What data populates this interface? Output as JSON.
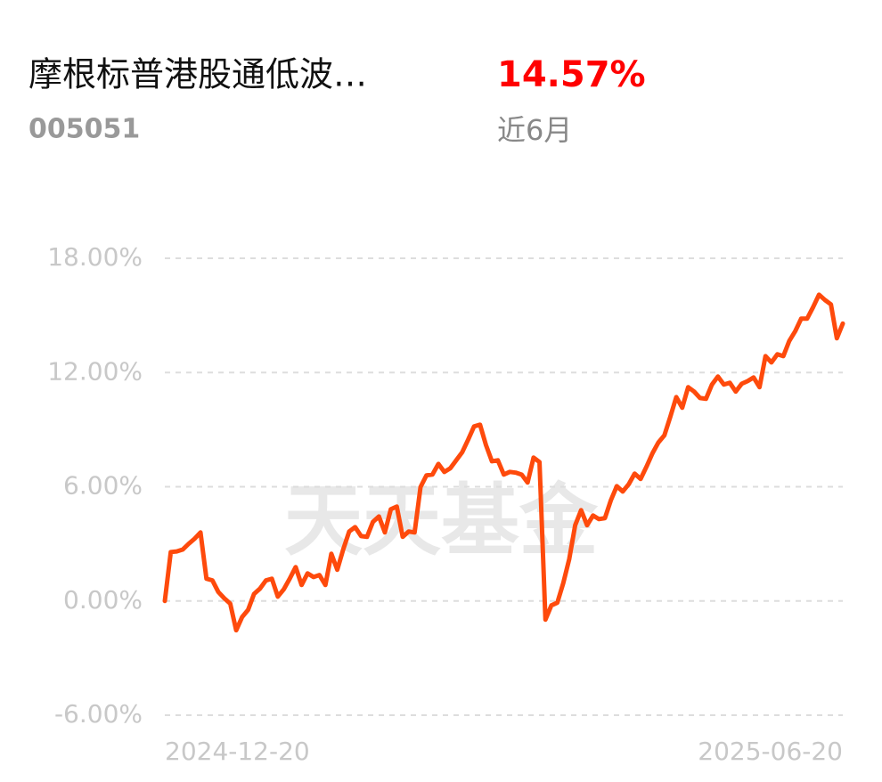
{
  "header": {
    "title": "摩根标普港股通低波…",
    "return": "14.57%",
    "code": "005051",
    "period": "近6月"
  },
  "chart_data": {
    "type": "line",
    "watermark": "天天基金",
    "categories": [
      "2024-12-20",
      null,
      null,
      null,
      null,
      null,
      null,
      null,
      null,
      null,
      null,
      null,
      null,
      null,
      null,
      null,
      null,
      null,
      null,
      null,
      null,
      null,
      null,
      null,
      null,
      null,
      null,
      null,
      null,
      null,
      null,
      null,
      null,
      null,
      null,
      null,
      null,
      null,
      null,
      null,
      null,
      null,
      null,
      null,
      null,
      null,
      null,
      null,
      null,
      null,
      null,
      null,
      null,
      null,
      null,
      null,
      null,
      null,
      null,
      null,
      null,
      null,
      null,
      null,
      null,
      null,
      null,
      null,
      null,
      null,
      null,
      null,
      null,
      null,
      null,
      null,
      null,
      null,
      null,
      null,
      null,
      null,
      null,
      null,
      null,
      null,
      null,
      null,
      null,
      null,
      null,
      null,
      null,
      null,
      null,
      null,
      null,
      null,
      null,
      null,
      null,
      null,
      null,
      null,
      null,
      null,
      null,
      null,
      null,
      null,
      null,
      null,
      null,
      null,
      "2025-06-20"
    ],
    "series": [
      {
        "color": "#fe4a0c",
        "values": [
          0,
          2.57,
          2.6,
          2.7,
          3.0,
          3.27,
          3.6,
          1.17,
          1.08,
          0.47,
          0.14,
          -0.14,
          -1.54,
          -0.84,
          -0.47,
          0.37,
          0.65,
          1.08,
          1.17,
          0.23,
          0.61,
          1.17,
          1.78,
          0.84,
          1.45,
          1.26,
          1.36,
          0.84,
          2.48,
          1.64,
          2.71,
          3.65,
          3.88,
          3.41,
          3.37,
          4.16,
          4.44,
          3.6,
          4.82,
          4.96,
          3.37,
          3.65,
          3.6,
          5.99,
          6.6,
          6.64,
          7.2,
          6.78,
          6.97,
          7.39,
          7.81,
          8.47,
          9.17,
          9.26,
          8.19,
          7.34,
          7.39,
          6.64,
          6.78,
          6.74,
          6.64,
          6.22,
          7.53,
          7.3,
          -0.98,
          -0.23,
          -0.09,
          0.94,
          2.2,
          3.98,
          4.77,
          3.98,
          4.49,
          4.3,
          4.35,
          5.29,
          6.03,
          5.75,
          6.13,
          6.69,
          6.41,
          7.06,
          7.76,
          8.33,
          8.7,
          9.68,
          10.71,
          10.15,
          11.23,
          11.0,
          10.66,
          10.62,
          11.37,
          11.79,
          11.37,
          11.46,
          11.0,
          11.41,
          11.55,
          11.74,
          11.23,
          12.86,
          12.53,
          12.96,
          12.86,
          13.66,
          14.17,
          14.83,
          14.83,
          15.43,
          16.09,
          15.81,
          15.58,
          13.8,
          14.57
        ]
      }
    ],
    "ylim": [
      -6,
      18
    ],
    "yticks": [
      {
        "value": -6,
        "label": "-6.00%"
      },
      {
        "value": 0,
        "label": "0.00%"
      },
      {
        "value": 6,
        "label": "6.00%"
      },
      {
        "value": 12,
        "label": "12.00%"
      },
      {
        "value": 18,
        "label": "18.00%"
      }
    ],
    "grid": true
  }
}
